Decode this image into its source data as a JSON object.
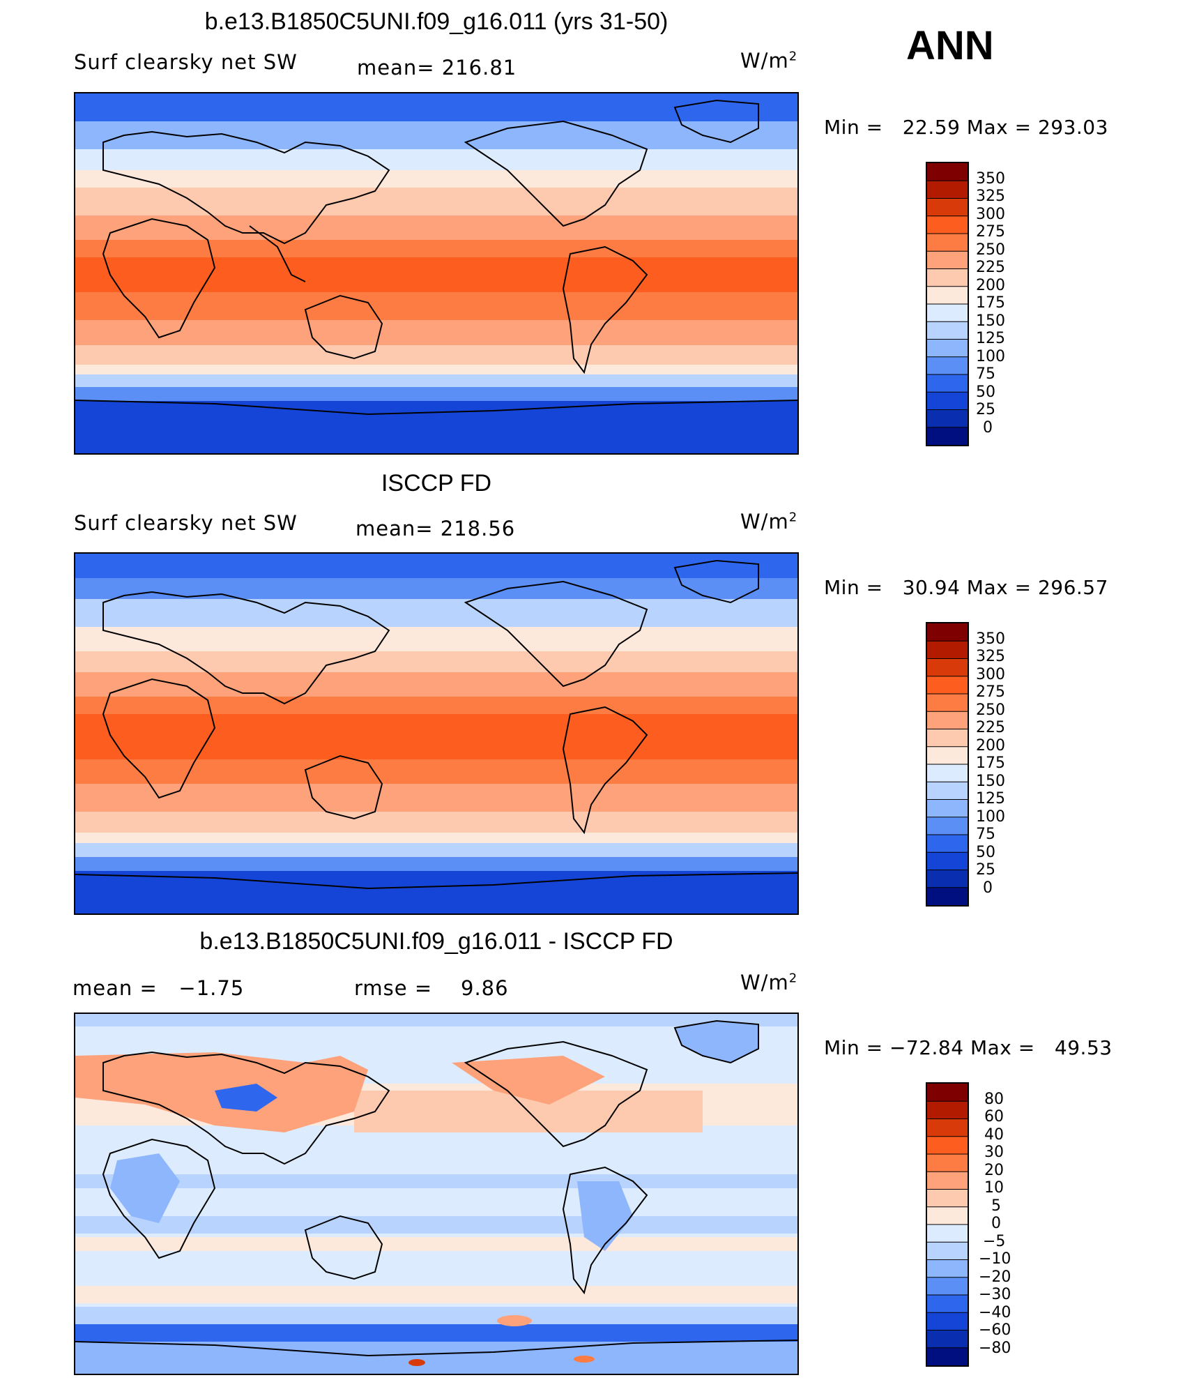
{
  "season": "ANN",
  "units_text": "W/m",
  "units_sup": "2",
  "panels": [
    {
      "title": "b.e13.B1850C5UNI.f09_g16.011 (yrs 31-50)",
      "left_label": "Surf clearsky net SW",
      "mid_label": "mean= 216.81",
      "minmax": "Min =   22.59 Max = 293.03",
      "colorbar_labels": [
        "350",
        "325",
        "300",
        "275",
        "250",
        "225",
        "200",
        "175",
        "150",
        "125",
        "100",
        "75",
        "50",
        "25",
        "0"
      ]
    },
    {
      "title": "ISCCP FD",
      "left_label": "Surf clearsky net SW",
      "mid_label": "mean= 218.56",
      "minmax": "Min =   30.94 Max = 296.57",
      "colorbar_labels": [
        "350",
        "325",
        "300",
        "275",
        "250",
        "225",
        "200",
        "175",
        "150",
        "125",
        "100",
        "75",
        "50",
        "25",
        "0"
      ]
    },
    {
      "title": "b.e13.B1850C5UNI.f09_g16.011 - ISCCP FD",
      "left_label": "mean =   −1.75",
      "mid_label": "rmse =    9.86",
      "minmax": "Min = −72.84 Max =   49.53",
      "colorbar_labels": [
        "80",
        "60",
        "40",
        "30",
        "20",
        "10",
        "5",
        "0",
        "−5",
        "−10",
        "−20",
        "−30",
        "−40",
        "−60",
        "−80"
      ]
    }
  ],
  "colors": {
    "abs_scale": [
      "#7f0000",
      "#b31b00",
      "#d93a0a",
      "#fd5e20",
      "#fd7c44",
      "#fda27a",
      "#fdcab0",
      "#fde8dc",
      "#dcebfd",
      "#b8d3fd",
      "#8eb6fd",
      "#5b8ff6",
      "#2e66ee",
      "#1545d6",
      "#0a2eb0",
      "#000f80"
    ],
    "diff_scale": [
      "#7f0000",
      "#b31b00",
      "#d93a0a",
      "#fd5e20",
      "#fd7c44",
      "#fda27a",
      "#fdcab0",
      "#fde8dc",
      "#dcebfd",
      "#b8d3fd",
      "#8eb6fd",
      "#5b8ff6",
      "#2e66ee",
      "#1545d6",
      "#0a2eb0",
      "#000f80"
    ]
  }
}
